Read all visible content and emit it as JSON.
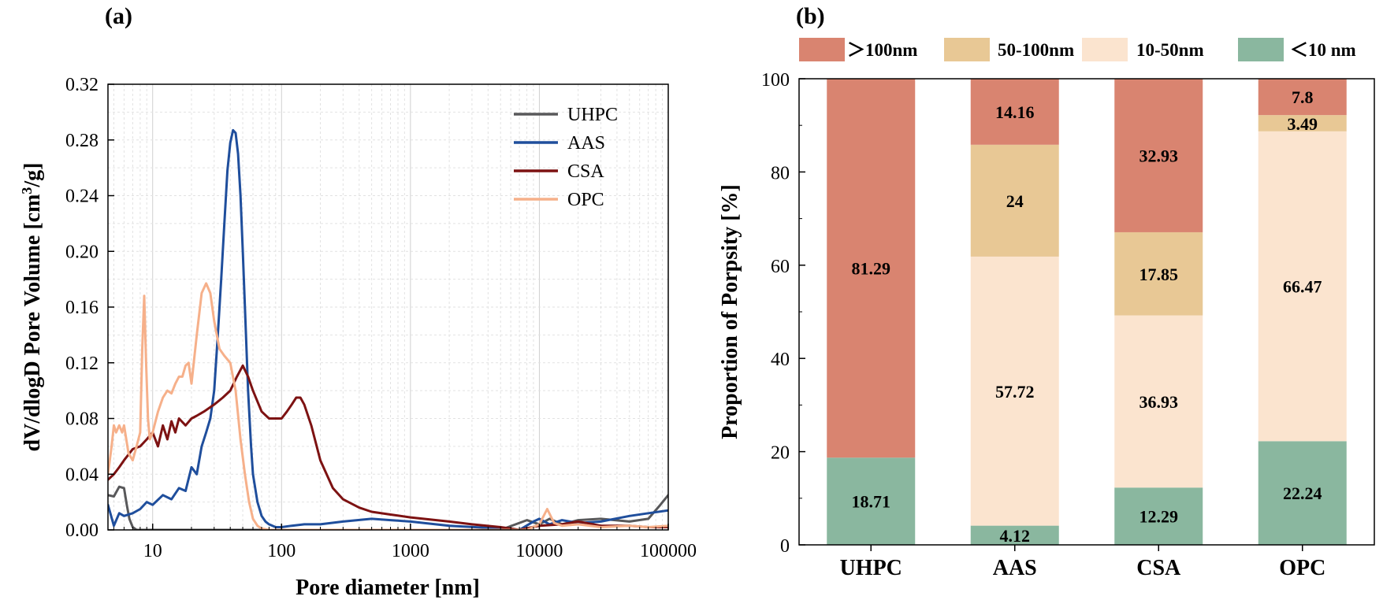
{
  "chart_data": [
    {
      "panel_label": "(a)",
      "type": "line",
      "xlabel": "Pore diameter [nm]",
      "ylabel": "dV/dlogD Pore Volume [cm³/g]",
      "ylabel_parts": [
        "dV/dlogD Pore Volume [cm",
        "3",
        "/g]"
      ],
      "x_scale": "log",
      "xlim": [
        4.5,
        100000
      ],
      "ylim": [
        0,
        0.32
      ],
      "x_ticks": [
        10,
        100,
        1000,
        10000,
        100000
      ],
      "x_tick_labels": [
        "10",
        "100",
        "1000",
        "10000",
        "100000"
      ],
      "y_ticks": [
        0,
        0.04,
        0.08,
        0.12,
        0.16,
        0.2,
        0.24,
        0.28,
        0.32
      ],
      "y_tick_labels": [
        "0.00",
        "0.04",
        "0.08",
        "0.12",
        "0.16",
        "0.20",
        "0.24",
        "0.28",
        "0.32"
      ],
      "grid": true,
      "legend_position": "top-right",
      "series": [
        {
          "name": "UHPC",
          "color": "#58585a",
          "x": [
            4.5,
            5.0,
            5.5,
            6.0,
            6.3,
            6.6,
            7.0,
            7.5,
            8,
            10,
            20,
            50,
            100,
            1000,
            5000,
            8000,
            10000,
            12000,
            15000,
            20000,
            30000,
            50000,
            70000,
            85000,
            100000
          ],
          "y": [
            0.025,
            0.024,
            0.031,
            0.03,
            0.018,
            0.008,
            0.002,
            0.0,
            0.0,
            0.0,
            0.0,
            0.0,
            0.0,
            0.0,
            0.0,
            0.007,
            0.004,
            0.008,
            0.004,
            0.007,
            0.008,
            0.006,
            0.008,
            0.017,
            0.025
          ]
        },
        {
          "name": "AAS",
          "color": "#1f4e9c",
          "x": [
            4.5,
            5.0,
            5.5,
            6.0,
            7.0,
            8.0,
            9.0,
            10,
            12,
            14,
            16,
            18,
            20,
            22,
            24,
            26,
            28,
            30,
            32,
            34,
            36,
            38,
            40,
            42,
            44,
            46,
            48,
            50,
            52,
            55,
            58,
            60,
            65,
            70,
            75,
            80,
            90,
            100,
            120,
            150,
            200,
            300,
            500,
            700,
            1000,
            2000,
            5000,
            7000,
            9000,
            10000,
            12000,
            15000,
            20000,
            30000,
            50000,
            70000,
            100000
          ],
          "y": [
            0.018,
            0.003,
            0.012,
            0.01,
            0.012,
            0.015,
            0.02,
            0.018,
            0.025,
            0.022,
            0.03,
            0.028,
            0.045,
            0.04,
            0.06,
            0.07,
            0.08,
            0.1,
            0.14,
            0.18,
            0.22,
            0.258,
            0.278,
            0.287,
            0.285,
            0.27,
            0.24,
            0.2,
            0.16,
            0.1,
            0.06,
            0.04,
            0.02,
            0.01,
            0.006,
            0.004,
            0.002,
            0.002,
            0.003,
            0.004,
            0.004,
            0.006,
            0.008,
            0.007,
            0.006,
            0.003,
            0.001,
            0.0,
            0.006,
            0.008,
            0.004,
            0.007,
            0.005,
            0.006,
            0.01,
            0.012,
            0.014
          ]
        },
        {
          "name": "CSA",
          "color": "#7d1212",
          "x": [
            4.5,
            5.0,
            5.5,
            6.0,
            7.0,
            8.0,
            9.0,
            10,
            11,
            12,
            13,
            14,
            15,
            16,
            18,
            20,
            22,
            25,
            30,
            35,
            40,
            45,
            50,
            55,
            60,
            70,
            80,
            90,
            100,
            110,
            120,
            130,
            140,
            150,
            170,
            200,
            250,
            300,
            400,
            500,
            700,
            1000,
            2000,
            3000,
            5000,
            6000,
            7000,
            10000,
            15000,
            20000,
            30000,
            50000,
            70000,
            100000
          ],
          "y": [
            0.036,
            0.04,
            0.045,
            0.05,
            0.058,
            0.06,
            0.065,
            0.07,
            0.06,
            0.075,
            0.065,
            0.078,
            0.07,
            0.08,
            0.075,
            0.08,
            0.082,
            0.085,
            0.09,
            0.095,
            0.1,
            0.11,
            0.118,
            0.11,
            0.1,
            0.085,
            0.08,
            0.08,
            0.08,
            0.085,
            0.09,
            0.095,
            0.095,
            0.09,
            0.075,
            0.05,
            0.03,
            0.022,
            0.016,
            0.013,
            0.011,
            0.009,
            0.006,
            0.004,
            0.002,
            0.001,
            0.0,
            0.003,
            0.004,
            0.006,
            0.003,
            0.003,
            0.002,
            0.002
          ]
        },
        {
          "name": "OPC",
          "color": "#f6b08a",
          "x": [
            4.5,
            4.8,
            5.0,
            5.2,
            5.5,
            5.8,
            6.0,
            6.5,
            7.0,
            7.5,
            8.0,
            8.3,
            8.6,
            8.9,
            9.2,
            9.5,
            10,
            11,
            12,
            13,
            14,
            15,
            16,
            17,
            18,
            19,
            20,
            22,
            24,
            26,
            28,
            30,
            33,
            36,
            40,
            44,
            48,
            52,
            56,
            60,
            65,
            70,
            80,
            90,
            100,
            150,
            200,
            500,
            1000,
            2000,
            5000,
            8000,
            10000,
            11500,
            13000,
            15000,
            20000,
            30000,
            50000,
            70000,
            100000
          ],
          "y": [
            0.04,
            0.06,
            0.075,
            0.07,
            0.075,
            0.07,
            0.075,
            0.055,
            0.05,
            0.06,
            0.07,
            0.13,
            0.168,
            0.12,
            0.08,
            0.065,
            0.07,
            0.085,
            0.095,
            0.1,
            0.098,
            0.105,
            0.11,
            0.11,
            0.118,
            0.12,
            0.105,
            0.14,
            0.17,
            0.177,
            0.17,
            0.15,
            0.13,
            0.125,
            0.12,
            0.1,
            0.065,
            0.04,
            0.02,
            0.008,
            0.003,
            0.001,
            0.0,
            0.0,
            0.0,
            0.0,
            0.0,
            0.0,
            0.0,
            0.0,
            0.0,
            0.0,
            0.004,
            0.015,
            0.005,
            0.003,
            0.004,
            0.002,
            0.003,
            0.002,
            0.003
          ]
        }
      ]
    },
    {
      "panel_label": "(b)",
      "type": "bar",
      "stacked": true,
      "categories": [
        "UHPC",
        "AAS",
        "CSA",
        "OPC"
      ],
      "ylabel": "Proportion of Porpsity [%]",
      "ylim": [
        0,
        100
      ],
      "y_ticks": [
        0,
        20,
        40,
        60,
        80,
        100
      ],
      "y_tick_labels": [
        "0",
        "20",
        "40",
        "60",
        "80",
        "100"
      ],
      "legend_position": "top",
      "series": [
        {
          "name": "<10 nm",
          "color": "#8ab79f",
          "values": [
            18.71,
            4.12,
            12.29,
            22.24
          ],
          "labels": [
            "18.71",
            "4.12",
            "12.29",
            "22.24"
          ]
        },
        {
          "name": "10-50nm",
          "color": "#fbe4cf",
          "values": [
            0,
            57.72,
            36.93,
            66.47
          ],
          "labels": [
            "",
            "57.72",
            "36.93",
            "66.47"
          ]
        },
        {
          "name": "50-100nm",
          "color": "#e8c895",
          "values": [
            0,
            24,
            17.85,
            3.49
          ],
          "labels": [
            "",
            "24",
            "17.85",
            "3.49"
          ]
        },
        {
          "name": ">100nm",
          "color": "#d98470",
          "values": [
            81.29,
            14.16,
            32.93,
            7.8
          ],
          "labels": [
            "81.29",
            "14.16",
            "32.93",
            "7.8"
          ]
        }
      ],
      "legend_order": [
        ">100nm",
        "50-100nm",
        "10-50nm",
        "<10 nm"
      ],
      "legend_labels": [
        "＞100nm",
        "50-100nm",
        "10-50nm",
        "＜10 nm"
      ]
    }
  ]
}
